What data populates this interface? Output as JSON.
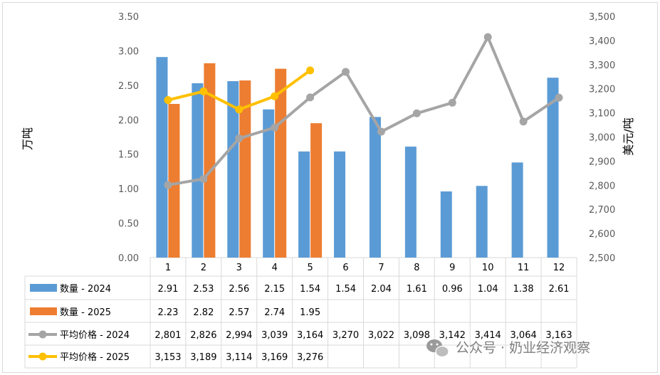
{
  "chart_data": {
    "type": "bar",
    "categories": [
      "1",
      "2",
      "3",
      "4",
      "5",
      "6",
      "7",
      "8",
      "9",
      "10",
      "11",
      "12"
    ],
    "y_left": {
      "label": "万吨",
      "range": [
        0,
        3.5
      ],
      "ticks": [
        "0.00",
        "0.50",
        "1.00",
        "1.50",
        "2.00",
        "2.50",
        "3.00",
        "3.50"
      ],
      "tick_values": [
        0,
        0.5,
        1,
        1.5,
        2,
        2.5,
        3,
        3.5
      ]
    },
    "y_right": {
      "label": "美元/吨",
      "range": [
        2500,
        3500
      ],
      "ticks": [
        "2,500",
        "2,600",
        "2,700",
        "2,800",
        "2,900",
        "3,000",
        "3,100",
        "3,200",
        "3,300",
        "3,400",
        "3,500"
      ],
      "tick_values": [
        2500,
        2600,
        2700,
        2800,
        2900,
        3000,
        3100,
        3200,
        3300,
        3400,
        3500
      ]
    },
    "series": [
      {
        "name": "数量 - 2024",
        "kind": "bar",
        "axis": "left",
        "color": "#5b9bd5",
        "values": [
          2.91,
          2.53,
          2.56,
          2.15,
          1.54,
          1.54,
          2.04,
          1.61,
          0.96,
          1.04,
          1.38,
          2.61
        ],
        "labels": [
          "2.91",
          "2.53",
          "2.56",
          "2.15",
          "1.54",
          "1.54",
          "2.04",
          "1.61",
          "0.96",
          "1.04",
          "1.38",
          "2.61"
        ]
      },
      {
        "name": "数量 - 2025",
        "kind": "bar",
        "axis": "left",
        "color": "#ed7d31",
        "values": [
          2.23,
          2.82,
          2.57,
          2.74,
          1.95,
          null,
          null,
          null,
          null,
          null,
          null,
          null
        ],
        "labels": [
          "2.23",
          "2.82",
          "2.57",
          "2.74",
          "1.95",
          "",
          "",
          "",
          "",
          "",
          "",
          ""
        ]
      },
      {
        "name": "平均价格 - 2024",
        "kind": "line",
        "axis": "right",
        "color": "#a5a5a5",
        "values": [
          2801,
          2826,
          2994,
          3039,
          3164,
          3270,
          3022,
          3098,
          3142,
          3414,
          3064,
          3163
        ],
        "labels": [
          "2,801",
          "2,826",
          "2,994",
          "3,039",
          "3,164",
          "3,270",
          "3,022",
          "3,098",
          "3,142",
          "3,414",
          "3,064",
          "3,163"
        ]
      },
      {
        "name": "平均价格 - 2025",
        "kind": "line",
        "axis": "right",
        "color": "#ffc000",
        "values": [
          3153,
          3189,
          3114,
          3169,
          3276,
          null,
          null,
          null,
          null,
          null,
          null,
          null
        ],
        "labels": [
          "3,153",
          "3,189",
          "3,114",
          "3,169",
          "3,276",
          "",
          "",
          "",
          "",
          "",
          "",
          ""
        ]
      }
    ],
    "grid": false,
    "legend": "data-table-left"
  },
  "watermark": "公众号 · 奶业经济观察",
  "colors": {
    "axis": "#d9d9d9",
    "text": "#595959"
  }
}
